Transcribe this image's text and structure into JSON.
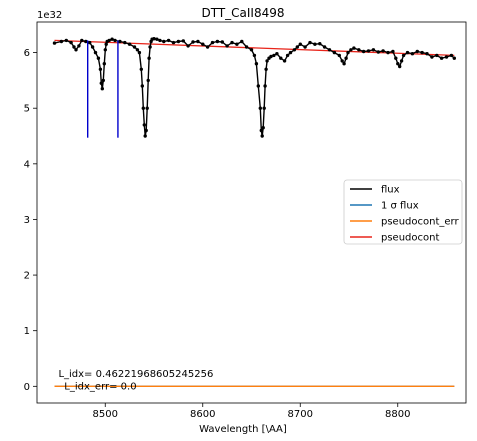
{
  "chart_data": {
    "type": "line",
    "title": "DTT_CaII8498",
    "xlabel": "Wavelength [\\AA]",
    "ylabel": "",
    "scale_label": "1e32",
    "xlim": [
      8430,
      8870
    ],
    "ylim": [
      -0.3,
      6.55
    ],
    "x_ticks": [
      8500,
      8600,
      8700,
      8800
    ],
    "x_tick_labels": [
      "8500",
      "8600",
      "8700",
      "8800"
    ],
    "y_ticks": [
      0,
      1,
      2,
      3,
      4,
      5,
      6
    ],
    "y_tick_labels": [
      "0",
      "1",
      "2",
      "3",
      "4",
      "5",
      "6"
    ],
    "legend_position": "center-right",
    "series": [
      {
        "name": "flux",
        "color": "#000000",
        "marker": "dot",
        "x": [
          8448,
          8455,
          8460,
          8465,
          8468,
          8470,
          8473,
          8476,
          8480,
          8484,
          8487,
          8490,
          8493,
          8495,
          8496,
          8497,
          8498,
          8499,
          8500,
          8501,
          8502,
          8504,
          8507,
          8510,
          8515,
          8520,
          8525,
          8530,
          8533,
          8535,
          8537,
          8538,
          8539,
          8540,
          8541,
          8542,
          8543,
          8544,
          8545,
          8546,
          8547,
          8548,
          8550,
          8553,
          8556,
          8560,
          8565,
          8570,
          8575,
          8580,
          8585,
          8590,
          8595,
          8600,
          8605,
          8610,
          8615,
          8620,
          8625,
          8630,
          8635,
          8640,
          8645,
          8650,
          8653,
          8655,
          8657,
          8659,
          8660,
          8661,
          8662,
          8663,
          8664,
          8665,
          8666,
          8668,
          8670,
          8673,
          8676,
          8680,
          8684,
          8687,
          8690,
          8694,
          8697,
          8700,
          8705,
          8710,
          8715,
          8720,
          8725,
          8730,
          8735,
          8740,
          8743,
          8745,
          8747,
          8749,
          8752,
          8755,
          8760,
          8765,
          8770,
          8775,
          8780,
          8785,
          8790,
          8795,
          8798,
          8800,
          8802,
          8804,
          8806,
          8810,
          8815,
          8820,
          8825,
          8830,
          8835,
          8840,
          8845,
          8850,
          8855,
          8858
        ],
        "y": [
          6.17,
          6.2,
          6.22,
          6.18,
          6.1,
          6.05,
          6.12,
          6.22,
          6.2,
          6.18,
          6.1,
          6.0,
          5.9,
          5.7,
          5.45,
          5.35,
          5.5,
          5.8,
          6.05,
          6.15,
          6.2,
          6.22,
          6.24,
          6.22,
          6.2,
          6.18,
          6.15,
          6.1,
          6.05,
          6.0,
          5.7,
          5.4,
          5.0,
          4.7,
          4.5,
          4.6,
          5.0,
          5.5,
          5.9,
          6.1,
          6.2,
          6.24,
          6.25,
          6.24,
          6.22,
          6.2,
          6.22,
          6.18,
          6.2,
          6.21,
          6.12,
          6.19,
          6.2,
          6.15,
          6.1,
          6.18,
          6.2,
          6.19,
          6.12,
          6.18,
          6.15,
          6.2,
          6.1,
          6.05,
          5.95,
          5.8,
          5.4,
          5.0,
          4.6,
          4.5,
          4.65,
          5.0,
          5.4,
          5.7,
          5.85,
          5.9,
          5.93,
          5.95,
          5.98,
          5.9,
          5.85,
          5.95,
          6.0,
          6.05,
          6.1,
          6.15,
          6.1,
          6.18,
          6.15,
          6.16,
          6.1,
          6.05,
          6.0,
          5.95,
          5.85,
          5.8,
          5.9,
          6.0,
          6.05,
          6.08,
          6.05,
          6.02,
          6.03,
          6.05,
          6.01,
          6.03,
          6.0,
          6.02,
          5.9,
          5.8,
          5.75,
          5.85,
          5.95,
          6.0,
          5.98,
          6.02,
          6.0,
          5.98,
          5.92,
          5.95,
          5.9,
          5.92,
          5.95,
          5.9
        ]
      },
      {
        "name": "1 σ flux",
        "color": "#1f77b4",
        "x": [
          8448,
          8858
        ],
        "y": [
          0.0,
          0.0
        ]
      },
      {
        "name": "pseudocont_err",
        "color": "#ff7f0e",
        "x": [
          8448,
          8858
        ],
        "y": [
          0.0,
          0.0
        ]
      },
      {
        "name": "pseudocont",
        "color": "#e8251b",
        "x": [
          8448,
          8858
        ],
        "y": [
          6.22,
          5.95
        ]
      }
    ],
    "vertical_lines": [
      {
        "x": 8482,
        "y_bottom": 4.47,
        "y_top": 6.22,
        "color": "#0000cc"
      },
      {
        "x": 8513,
        "y_bottom": 4.47,
        "y_top": 6.22,
        "color": "#0000cc"
      }
    ],
    "annotations": [
      {
        "text": "L_idx= 0.46221968605245256",
        "x": 8452,
        "y": 0.22
      },
      {
        "text": "L_idx_err= 0.0",
        "x": 8458,
        "y": 0.0
      }
    ]
  }
}
